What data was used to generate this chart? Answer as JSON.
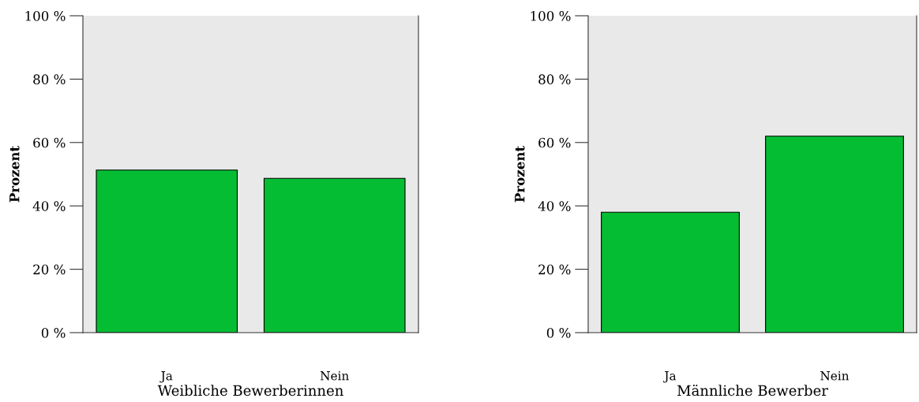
{
  "chart_data": [
    {
      "type": "bar",
      "xlabel": "Weibliche Bewerberinnen",
      "ylabel": "Prozent",
      "categories": [
        "Ja",
        "Nein"
      ],
      "values": [
        51.3,
        48.7
      ],
      "color": "#04bd33",
      "ylim": [
        0,
        100
      ],
      "yticks": [
        {
          "value": 0,
          "label": "0 %"
        },
        {
          "value": 20,
          "label": "20 %"
        },
        {
          "value": 40,
          "label": "40 %"
        },
        {
          "value": 60,
          "label": "60 %"
        },
        {
          "value": 80,
          "label": "80 %"
        },
        {
          "value": 100,
          "label": "100 %"
        }
      ],
      "grid": false
    },
    {
      "type": "bar",
      "xlabel": "Männliche Bewerber",
      "ylabel": "Prozent",
      "categories": [
        "Ja",
        "Nein"
      ],
      "values": [
        38,
        62
      ],
      "color": "#04bd33",
      "ylim": [
        0,
        100
      ],
      "yticks": [
        {
          "value": 0,
          "label": "0 %"
        },
        {
          "value": 20,
          "label": "20 %"
        },
        {
          "value": 40,
          "label": "40 %"
        },
        {
          "value": 60,
          "label": "60 %"
        },
        {
          "value": 80,
          "label": "80 %"
        },
        {
          "value": 100,
          "label": "100 %"
        }
      ],
      "grid": false
    }
  ]
}
